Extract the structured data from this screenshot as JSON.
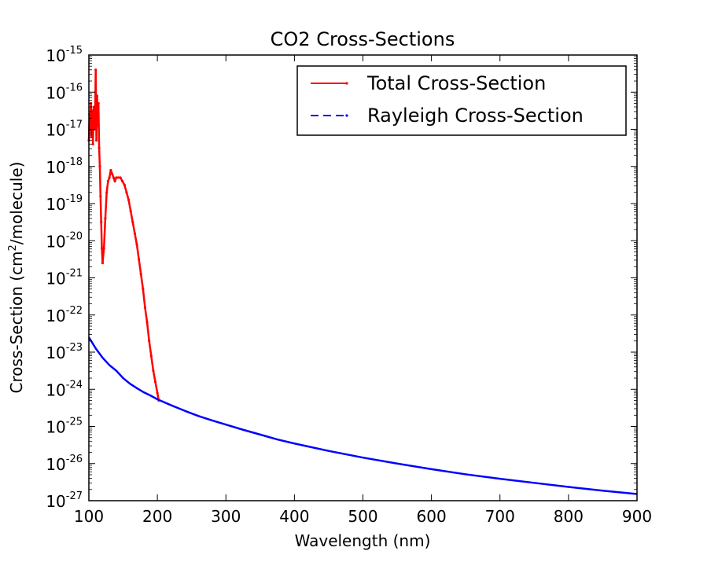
{
  "chart_data": {
    "type": "line",
    "title": "CO2 Cross-Sections",
    "xlabel": "Wavelength (nm)",
    "ylabel_prefix": "Cross-Section (cm",
    "ylabel_sup": "2",
    "ylabel_suffix": "/molecule)",
    "xlim": [
      100,
      900
    ],
    "ylim_log10": [
      -27,
      -15
    ],
    "yscale": "log",
    "grid": false,
    "legend_position": "top-right",
    "x_ticks": [
      "100",
      "200",
      "300",
      "400",
      "500",
      "600",
      "700",
      "800",
      "900"
    ],
    "x_tick_values": [
      100,
      200,
      300,
      400,
      500,
      600,
      700,
      800,
      900
    ],
    "y_tick_base": "10",
    "y_tick_exponents": [
      "-27",
      "-26",
      "-25",
      "-24",
      "-23",
      "-22",
      "-21",
      "-20",
      "-19",
      "-18",
      "-17",
      "-16",
      "-15"
    ],
    "series": [
      {
        "name": "Total Cross-Section",
        "color": "#ff0000",
        "style": "solid-dots",
        "x": [
          100,
          101,
          102,
          103,
          104,
          105,
          106,
          107,
          108,
          109,
          110,
          111,
          112,
          113,
          114,
          115,
          116,
          117,
          118,
          119,
          120,
          122,
          124,
          126,
          128,
          130,
          132,
          134,
          136,
          138,
          140,
          143,
          146,
          149,
          152,
          155,
          158,
          161,
          164,
          167,
          170,
          173,
          176,
          179,
          182,
          185,
          188,
          191,
          194,
          197,
          200,
          202
        ],
        "log10_y": [
          -17.3,
          -16.6,
          -17.0,
          -16.3,
          -17.2,
          -16.5,
          -17.4,
          -16.4,
          -17.0,
          -16.8,
          -15.4,
          -17.3,
          -16.1,
          -16.9,
          -16.3,
          -17.5,
          -18.0,
          -18.8,
          -19.5,
          -20.2,
          -20.6,
          -20.2,
          -19.4,
          -18.7,
          -18.4,
          -18.3,
          -18.1,
          -18.2,
          -18.3,
          -18.4,
          -18.3,
          -18.3,
          -18.3,
          -18.4,
          -18.5,
          -18.7,
          -18.9,
          -19.2,
          -19.5,
          -19.8,
          -20.1,
          -20.5,
          -20.9,
          -21.3,
          -21.8,
          -22.2,
          -22.7,
          -23.1,
          -23.5,
          -23.8,
          -24.1,
          -24.3
        ]
      },
      {
        "name": "Rayleigh Cross-Section",
        "color": "#0000ff",
        "style": "dashed",
        "x": [
          100,
          110,
          120,
          130,
          140,
          150,
          160,
          170,
          180,
          190,
          200,
          220,
          240,
          260,
          280,
          300,
          325,
          350,
          375,
          400,
          450,
          500,
          550,
          600,
          650,
          700,
          750,
          800,
          850,
          900
        ],
        "log10_y": [
          -22.6,
          -22.9,
          -23.15,
          -23.35,
          -23.5,
          -23.7,
          -23.85,
          -23.97,
          -24.08,
          -24.17,
          -24.27,
          -24.43,
          -24.58,
          -24.72,
          -24.84,
          -24.95,
          -25.09,
          -25.22,
          -25.35,
          -25.46,
          -25.66,
          -25.84,
          -26.0,
          -26.15,
          -26.29,
          -26.41,
          -26.52,
          -26.63,
          -26.73,
          -26.82
        ]
      }
    ]
  }
}
